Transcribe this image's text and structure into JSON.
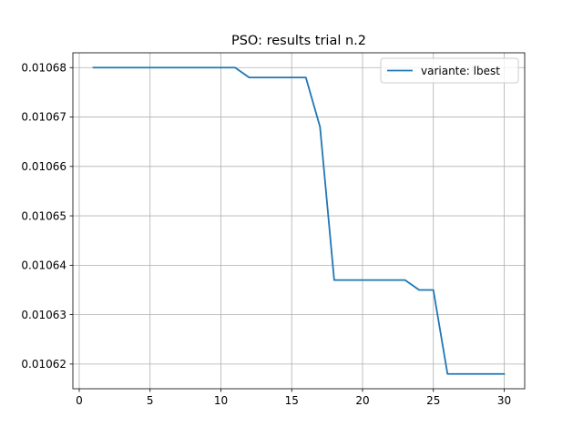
{
  "chart_data": {
    "type": "line",
    "title": "PSO: results trial n.2",
    "xlabel": "",
    "ylabel": "",
    "xlim": [
      -0.45,
      31.45
    ],
    "ylim": [
      0.010615,
      0.010683
    ],
    "grid": true,
    "legend_position": "top-right",
    "x_ticks": [
      0,
      5,
      10,
      15,
      20,
      25,
      30
    ],
    "y_ticks": [
      0.01062,
      0.01063,
      0.01064,
      0.01065,
      0.01066,
      0.01067,
      0.01068
    ],
    "x_tick_labels": [
      "0",
      "5",
      "10",
      "15",
      "20",
      "25",
      "30"
    ],
    "y_tick_labels": [
      "0.01062",
      "0.01063",
      "0.01064",
      "0.01065",
      "0.01066",
      "0.01067",
      "0.01068"
    ],
    "series": [
      {
        "name": "variante: lbest",
        "color": "#1f77b4",
        "x": [
          1,
          2,
          3,
          4,
          5,
          6,
          7,
          8,
          9,
          10,
          11,
          12,
          13,
          14,
          15,
          16,
          17,
          18,
          19,
          20,
          21,
          22,
          23,
          24,
          25,
          26,
          27,
          28,
          29,
          30
        ],
        "y": [
          0.01068,
          0.01068,
          0.01068,
          0.01068,
          0.01068,
          0.01068,
          0.01068,
          0.01068,
          0.01068,
          0.01068,
          0.01068,
          0.010678,
          0.010678,
          0.010678,
          0.010678,
          0.010678,
          0.010668,
          0.010637,
          0.010637,
          0.010637,
          0.010637,
          0.010637,
          0.010637,
          0.010635,
          0.010635,
          0.010618,
          0.010618,
          0.010618,
          0.010618,
          0.010618
        ]
      }
    ]
  }
}
